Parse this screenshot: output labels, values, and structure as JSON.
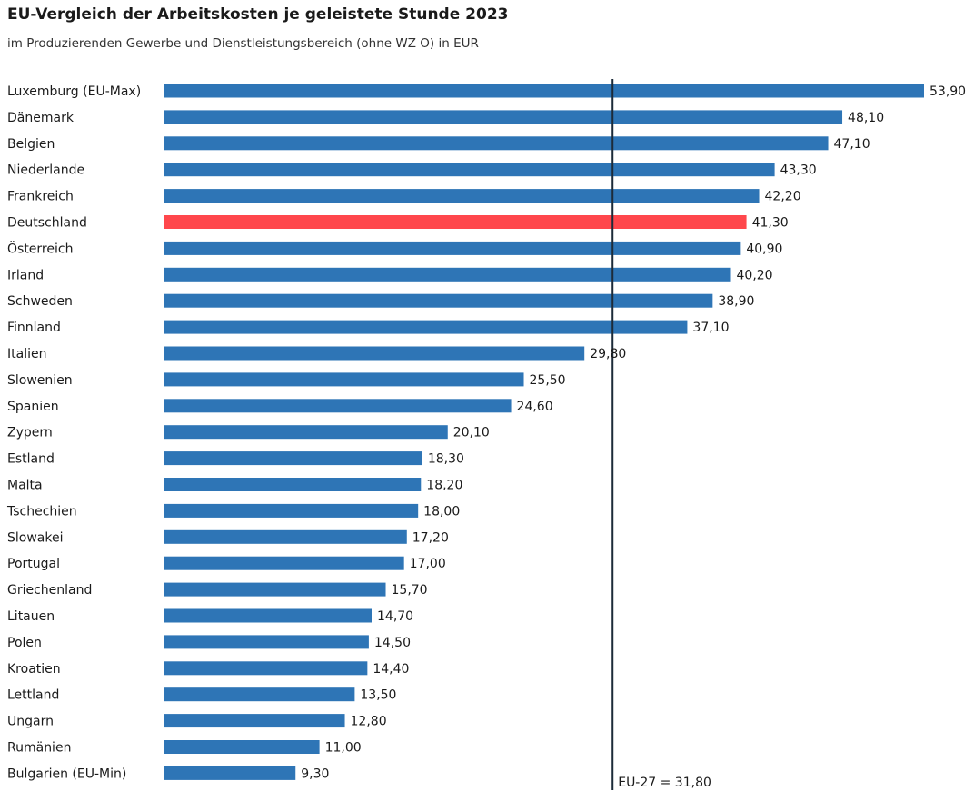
{
  "chart_data": {
    "type": "bar",
    "orientation": "horizontal",
    "title": "EU-Vergleich der Arbeitskosten je geleistete Stunde 2023",
    "subtitle": "im Produzierenden Gewerbe und Dienstleistungsbereich (ohne WZ O) in EUR",
    "categories": [
      "Luxemburg (EU-Max)",
      "Dänemark",
      "Belgien",
      "Niederlande",
      "Frankreich",
      "Deutschland",
      "Österreich",
      "Irland",
      "Schweden",
      "Finnland",
      "Italien",
      "Slowenien",
      "Spanien",
      "Zypern",
      "Estland",
      "Malta",
      "Tschechien",
      "Slowakei",
      "Portugal",
      "Griechenland",
      "Litauen",
      "Polen",
      "Kroatien",
      "Lettland",
      "Ungarn",
      "Rumänien",
      "Bulgarien (EU-Min)"
    ],
    "values": [
      53.9,
      48.1,
      47.1,
      43.3,
      42.2,
      41.3,
      40.9,
      40.2,
      38.9,
      37.1,
      29.8,
      25.5,
      24.6,
      20.1,
      18.3,
      18.2,
      18.0,
      17.2,
      17.0,
      15.7,
      14.7,
      14.5,
      14.4,
      13.5,
      12.8,
      11.0,
      9.3
    ],
    "value_labels": [
      "53,90",
      "48,10",
      "47,10",
      "43,30",
      "42,20",
      "41,30",
      "40,90",
      "40,20",
      "38,90",
      "37,10",
      "29,80",
      "25,50",
      "24,60",
      "20,10",
      "18,30",
      "18,20",
      "18,00",
      "17,20",
      "17,00",
      "15,70",
      "14,70",
      "14,50",
      "14,40",
      "13,50",
      "12,80",
      "11,00",
      "9,30"
    ],
    "highlight": "Deutschland",
    "colors": {
      "bar": "#2e75b6",
      "highlight": "#ff474c",
      "reference_line": "#1c2b39"
    },
    "reference_line": {
      "value": 31.8,
      "label": "EU-27 = 31,80"
    },
    "xlim": [
      0,
      53.9
    ],
    "grid": false,
    "legend": "none"
  }
}
